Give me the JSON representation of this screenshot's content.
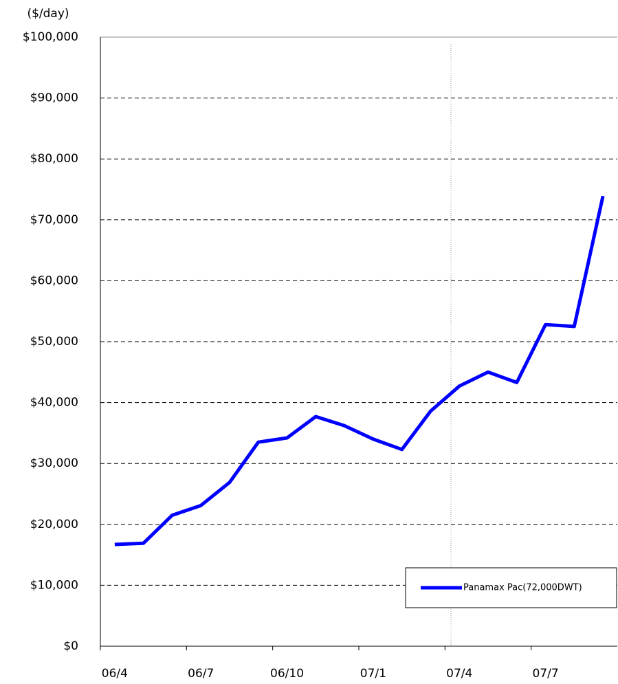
{
  "chart_data": {
    "type": "line",
    "y_label": "($/day)",
    "categories": [
      "06/4",
      null,
      null,
      "06/7",
      null,
      null,
      "06/10",
      null,
      null,
      "07/1",
      null,
      null,
      "07/4",
      null,
      null,
      "07/7",
      null,
      null
    ],
    "series": [
      {
        "name": "Panamax Pac(72,000DWT)",
        "color": "#0000ff",
        "values": [
          16700,
          16900,
          21500,
          23100,
          26900,
          33500,
          34200,
          37700,
          36200,
          34000,
          32300,
          38600,
          42700,
          45000,
          43300,
          52800,
          52500,
          73900
        ]
      }
    ],
    "ylim": [
      0,
      100000
    ],
    "yticks": [
      {
        "value": 0,
        "label": "$0"
      },
      {
        "value": 10000,
        "label": "$10,000"
      },
      {
        "value": 20000,
        "label": "$20,000"
      },
      {
        "value": 30000,
        "label": "$30,000"
      },
      {
        "value": 40000,
        "label": "$40,000"
      },
      {
        "value": 50000,
        "label": "$50,000"
      },
      {
        "value": 60000,
        "label": "$60,000"
      },
      {
        "value": 70000,
        "label": "$70,000"
      },
      {
        "value": 80000,
        "label": "$80,000"
      },
      {
        "value": 90000,
        "label": "$90,000"
      },
      {
        "value": 100000,
        "label": "$100,000"
      }
    ],
    "grid": true,
    "legend": "lower right"
  }
}
